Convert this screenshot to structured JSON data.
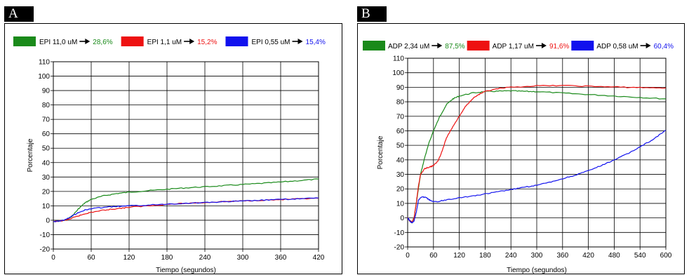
{
  "panels": [
    {
      "letter": "A"
    },
    {
      "letter": "B"
    }
  ],
  "colors": {
    "green": "#1a8a1a",
    "red": "#ee1111",
    "blue": "#1111ee",
    "arrow": "#000000"
  },
  "chart_data": [
    {
      "type": "line",
      "xlabel": "Tiempo (segundos)",
      "ylabel": "Porcentaje",
      "xlim": [
        0,
        420
      ],
      "ylim": [
        -20,
        110
      ],
      "xticks": [
        0,
        60,
        120,
        180,
        240,
        300,
        360,
        420
      ],
      "yticks": [
        -20,
        -10,
        0,
        10,
        20,
        30,
        40,
        50,
        60,
        70,
        80,
        90,
        100,
        110
      ],
      "grid": true,
      "legend_position": "top",
      "series": [
        {
          "name": "EPI 11,0 uM",
          "result": "28,6%",
          "color": "green",
          "x": [
            0,
            10,
            20,
            30,
            40,
            50,
            60,
            80,
            100,
            120,
            150,
            180,
            210,
            240,
            270,
            300,
            330,
            360,
            390,
            420
          ],
          "y": [
            -1,
            -0.5,
            0,
            3,
            8,
            12,
            14.5,
            17,
            18.5,
            19.5,
            20.5,
            21.5,
            22.5,
            23.2,
            24,
            24.8,
            25.6,
            26.5,
            27.5,
            28.6
          ]
        },
        {
          "name": "EPI 1,1 uM",
          "result": "15,2%",
          "color": "red",
          "x": [
            0,
            10,
            20,
            30,
            40,
            50,
            60,
            80,
            100,
            120,
            150,
            180,
            210,
            240,
            270,
            300,
            330,
            360,
            390,
            420
          ],
          "y": [
            -1,
            -0.5,
            0,
            1.5,
            3,
            4.5,
            5.5,
            7,
            8,
            9,
            10,
            11,
            11.7,
            12.3,
            12.9,
            13.4,
            13.9,
            14.3,
            14.8,
            15.2
          ]
        },
        {
          "name": "EPI 0,55 uM",
          "result": "15,4%",
          "color": "blue",
          "x": [
            0,
            10,
            20,
            30,
            40,
            50,
            60,
            80,
            100,
            120,
            150,
            180,
            210,
            240,
            270,
            300,
            330,
            360,
            390,
            420
          ],
          "y": [
            -1,
            -0.5,
            0.5,
            3,
            5.5,
            7,
            8,
            9,
            9.5,
            10,
            10.5,
            11.2,
            11.8,
            12.3,
            12.8,
            13.3,
            13.9,
            14.4,
            14.9,
            15.4
          ]
        }
      ]
    },
    {
      "type": "line",
      "xlabel": "Tiempo (segundos)",
      "ylabel": "Porcentaje",
      "xlim": [
        0,
        600
      ],
      "ylim": [
        -20,
        110
      ],
      "xticks": [
        0,
        60,
        120,
        180,
        240,
        300,
        360,
        420,
        480,
        540,
        600
      ],
      "yticks": [
        -20,
        -10,
        0,
        10,
        20,
        30,
        40,
        50,
        60,
        70,
        80,
        90,
        100,
        110
      ],
      "grid": true,
      "legend_position": "top",
      "series": [
        {
          "name": "ADP 2,34 uM",
          "result": "87,5%",
          "color": "green",
          "x": [
            0,
            5,
            10,
            15,
            20,
            30,
            40,
            50,
            60,
            75,
            90,
            105,
            120,
            150,
            180,
            210,
            240,
            270,
            300,
            360,
            420,
            480,
            540,
            600
          ],
          "y": [
            0,
            -2,
            -3,
            0,
            10,
            30,
            42,
            52,
            60,
            70,
            78,
            82,
            84,
            86,
            87,
            87.3,
            87.5,
            87.2,
            87,
            86,
            85,
            84,
            83,
            82
          ]
        },
        {
          "name": "ADP 1,17 uM",
          "result": "91,6%",
          "color": "red",
          "x": [
            0,
            5,
            10,
            15,
            20,
            25,
            30,
            40,
            50,
            60,
            70,
            80,
            90,
            105,
            120,
            135,
            150,
            165,
            180,
            210,
            240,
            300,
            360,
            420,
            480,
            540,
            600
          ],
          "y": [
            0,
            -2,
            -3,
            0,
            10,
            22,
            30,
            34,
            35,
            36,
            39,
            46,
            55,
            63,
            70,
            77,
            82,
            85,
            87,
            89,
            90,
            91,
            91.2,
            90.7,
            90.2,
            89.8,
            89.5
          ]
        },
        {
          "name": "ADP 0,58 uM",
          "result": "60,4%",
          "color": "blue",
          "x": [
            0,
            5,
            10,
            15,
            20,
            25,
            30,
            40,
            50,
            60,
            75,
            90,
            120,
            150,
            180,
            210,
            240,
            270,
            300,
            330,
            360,
            390,
            420,
            450,
            480,
            510,
            540,
            570,
            600
          ],
          "y": [
            0,
            -2,
            -3.5,
            -2,
            4,
            12,
            14,
            14.5,
            12.5,
            11,
            11.5,
            12.5,
            14,
            15,
            16.5,
            18,
            19.5,
            21,
            22.5,
            24.5,
            27,
            29.5,
            32.5,
            36,
            40,
            44,
            49,
            54,
            60.4
          ]
        }
      ]
    }
  ]
}
